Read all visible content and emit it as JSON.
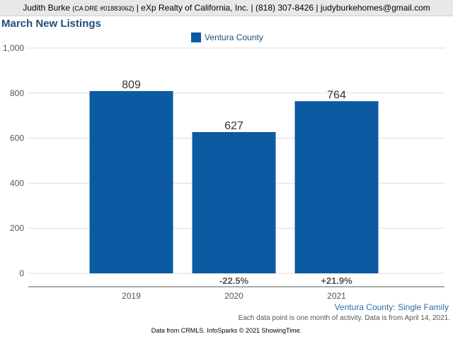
{
  "header": {
    "agent_name": "Judith Burke",
    "license": "(CA DRE #01883062)",
    "details": "| eXp Realty of California, Inc. | (818) 307-8426 | judyburkehomes@gmail.com"
  },
  "colors": {
    "bar": "#0b5aa2",
    "title": "#1f4e79",
    "caption": "#2f6ea5"
  },
  "chart_data": {
    "type": "bar",
    "title": "March New Listings",
    "categories": [
      "2019",
      "2020",
      "2021"
    ],
    "series": [
      {
        "name": "Ventura County",
        "values": [
          809,
          627,
          764
        ]
      }
    ],
    "value_labels": [
      "809",
      "627",
      "764"
    ],
    "change_labels": [
      "",
      "-22.5%",
      "+21.9%"
    ],
    "y_ticks": [
      0,
      200,
      400,
      600,
      800,
      1000
    ],
    "y_tick_labels": [
      "0",
      "200",
      "400",
      "600",
      "800",
      "1,000"
    ],
    "ylim": [
      0,
      1000
    ],
    "xlabel": "",
    "ylabel": "",
    "grid": true,
    "legend_position": "top-center"
  },
  "caption": {
    "region": "Ventura County: Single Family",
    "note": "Each data point is one month of activity. Data is from April 14, 2021."
  },
  "footer": {
    "source": "Data from CRMLS. InfoSparks © 2021 ShowingTime."
  }
}
